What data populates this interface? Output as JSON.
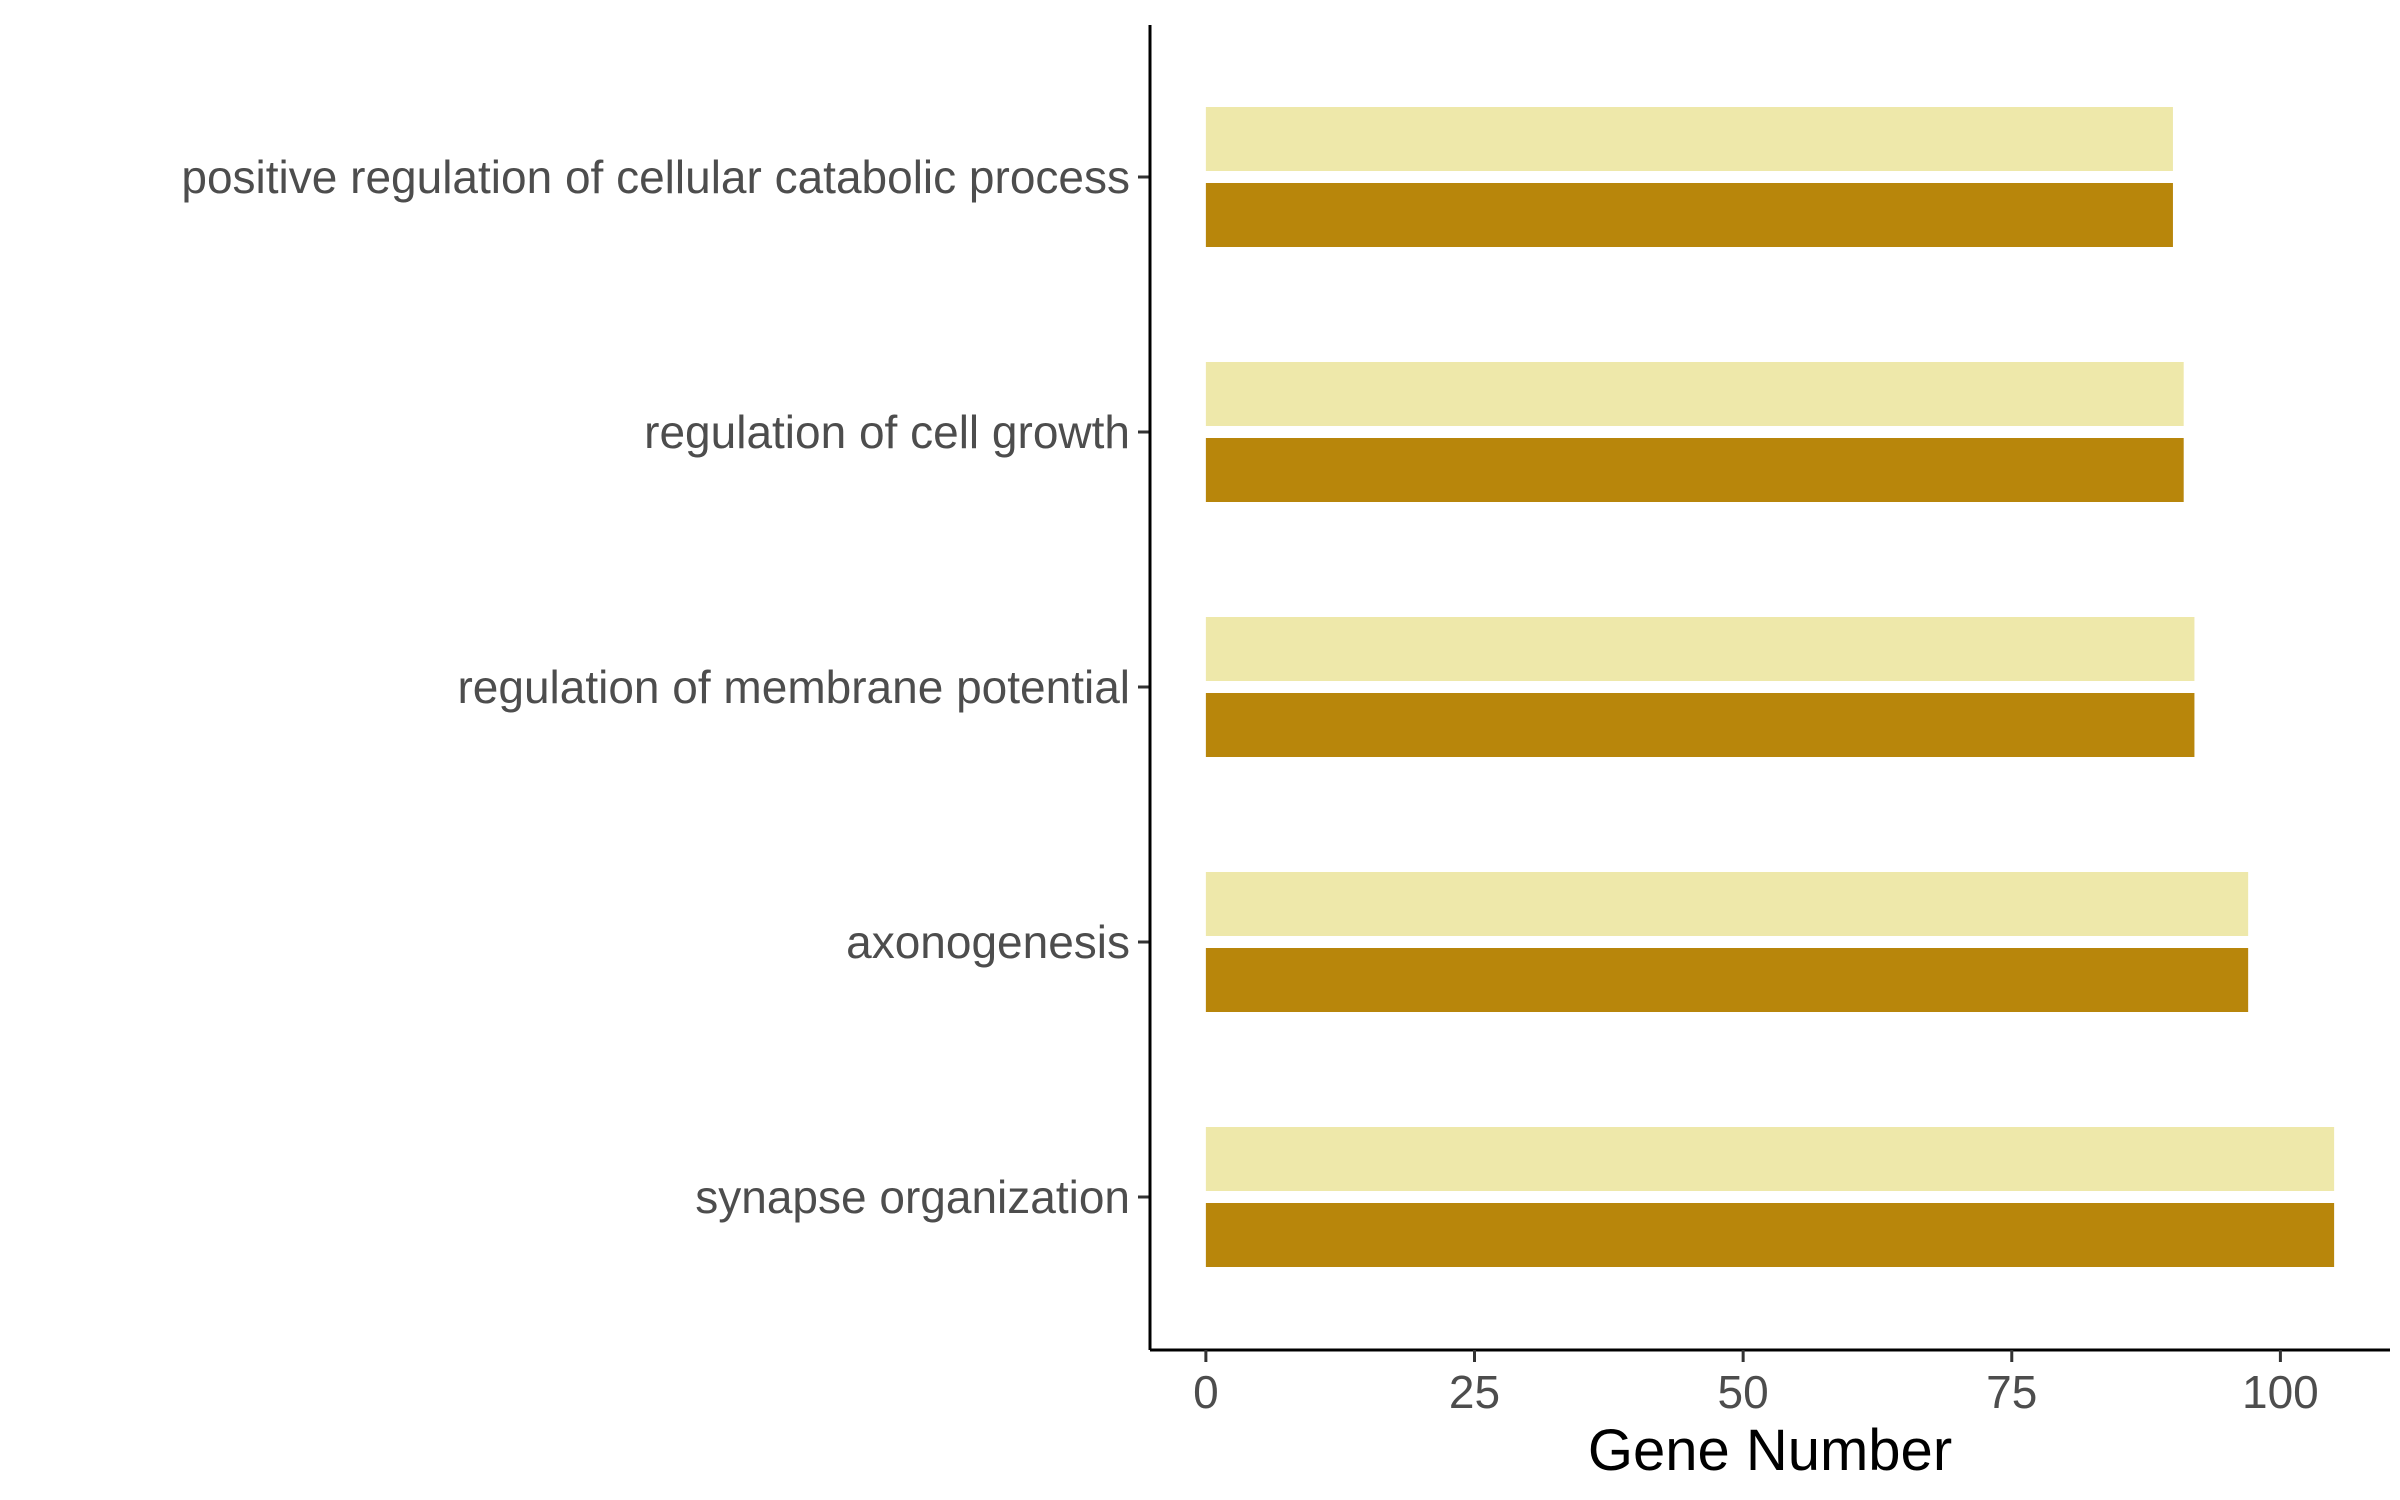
{
  "chart_data": {
    "type": "bar",
    "orientation": "horizontal",
    "categories": [
      "positive regulation of cellular catabolic process",
      "regulation of cell growth",
      "regulation of membrane potential",
      "axonogenesis",
      "synapse organization"
    ],
    "series": [
      {
        "color": "#EEE8AA",
        "values": [
          90,
          91,
          92,
          97,
          105
        ]
      },
      {
        "color": "#B8860B",
        "values": [
          90,
          91,
          92,
          97,
          105
        ]
      }
    ],
    "xlabel": "Gene Number",
    "ylabel": "",
    "title": "",
    "xlim": [
      -5.2,
      110.2
    ],
    "xticks": [
      0,
      25,
      50,
      75,
      100
    ],
    "grid": false,
    "legend": "none"
  }
}
